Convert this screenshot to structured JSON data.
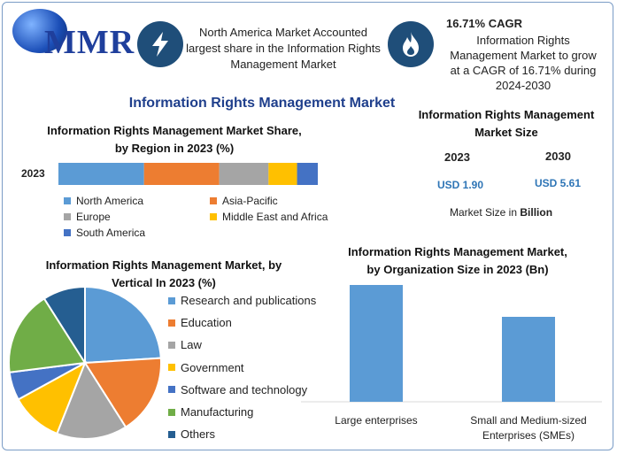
{
  "header": {
    "logo_text": "MMR",
    "highlight1": "North America Market Accounted largest share in the Information Rights Management Market",
    "highlight2_title": "16.71% CAGR",
    "highlight2_text": "Information Rights Management Market to grow at a CAGR of 16.71% during 2024-2030"
  },
  "main_title": "Information Rights Management Market",
  "market_size": {
    "title": "Information Rights Management Market Size",
    "year1": "2023",
    "year2": "2030",
    "value1": "USD 1.90",
    "value2": "USD 5.61",
    "unit_prefix": "Market Size in ",
    "unit_bold": "Billion"
  },
  "chart_data": [
    {
      "type": "bar",
      "stacked": true,
      "orientation": "horizontal",
      "title": "Information Rights Management Market Share, by Region in 2023 (%)",
      "categories": [
        "2023"
      ],
      "series": [
        {
          "name": "North America",
          "values": [
            33
          ],
          "color": "#5b9bd5"
        },
        {
          "name": "Asia-Pacific",
          "values": [
            29
          ],
          "color": "#ed7d31"
        },
        {
          "name": "Europe",
          "values": [
            19
          ],
          "color": "#a5a5a5"
        },
        {
          "name": "Middle East and Africa",
          "values": [
            11
          ],
          "color": "#ffc000"
        },
        {
          "name": "South America",
          "values": [
            8
          ],
          "color": "#4472c4"
        }
      ],
      "legend": "bottom"
    },
    {
      "type": "pie",
      "title": "Information Rights Management Market, by Vertical In 2023 (%)",
      "labels": [
        "Research and publications",
        "Education",
        "Law",
        "Government",
        "Software and technology",
        "Manufacturing",
        "Others"
      ],
      "values": [
        24,
        17,
        15,
        11,
        6,
        18,
        9
      ],
      "colors": [
        "#5b9bd5",
        "#ed7d31",
        "#a5a5a5",
        "#ffc000",
        "#4472c4",
        "#70ad47",
        "#255e91"
      ],
      "legend": "right"
    },
    {
      "type": "bar",
      "title": "Information Rights Management Market, by Organization Size in 2023 (Bn)",
      "categories": [
        "Large enterprises",
        "Small and Medium-sized Enterprises (SMEs)"
      ],
      "values": [
        1.1,
        0.8
      ],
      "color": "#5b9bd5"
    }
  ]
}
